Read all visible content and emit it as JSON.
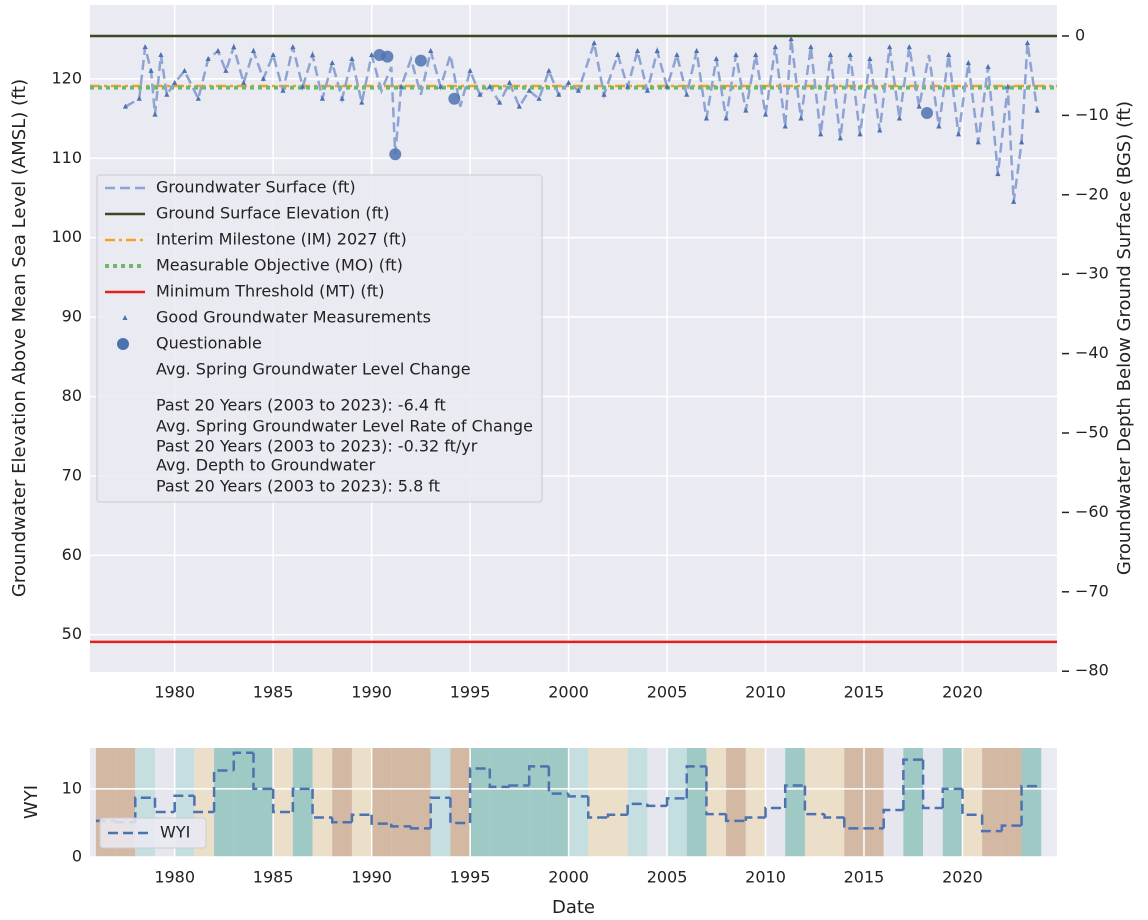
{
  "chart_data": [
    {
      "type": "line",
      "ylabel": "Groundwater Elevation Above Mean Sea Level (AMSL) (ft)",
      "y2label": "Groundwater Depth Below Ground Surface (BGS) (ft)",
      "xlim": [
        1975.7,
        2024.8
      ],
      "xticks": [
        1980,
        1985,
        1990,
        1995,
        2000,
        2005,
        2010,
        2015,
        2020
      ],
      "ylim": [
        45.3,
        129.3
      ],
      "yticks": [
        50,
        60,
        70,
        80,
        90,
        100,
        110,
        120
      ],
      "y2lim": [
        -80.1,
        3.9
      ],
      "y2ticks": [
        {
          "value": 0,
          "label": "0"
        },
        {
          "value": -10,
          "label": "−10"
        },
        {
          "value": -20,
          "label": "−20"
        },
        {
          "value": -30,
          "label": "−30"
        },
        {
          "value": -40,
          "label": "−40"
        },
        {
          "value": -50,
          "label": "−50"
        },
        {
          "value": -60,
          "label": "−60"
        },
        {
          "value": -70,
          "label": "−70"
        },
        {
          "value": -80,
          "label": "−80"
        }
      ],
      "grid": true,
      "series": [
        {
          "name": "Groundwater Surface (ft)",
          "color": "#8ea3d4",
          "style": "dashed",
          "x": [
            1977.5,
            1978.2,
            1978.5,
            1978.8,
            1979.0,
            1979.3,
            1979.6,
            1980.0,
            1980.5,
            1981.2,
            1981.7,
            1982.2,
            1982.6,
            1983.0,
            1983.5,
            1984.0,
            1984.5,
            1985.0,
            1985.5,
            1986.0,
            1986.5,
            1987.0,
            1987.5,
            1988.0,
            1988.5,
            1989.0,
            1989.5,
            1990.0,
            1990.5,
            1991.0,
            1991.2,
            1991.5,
            1992.0,
            1992.5,
            1993.0,
            1993.5,
            1994.0,
            1994.5,
            1995.0,
            1995.5,
            1996.0,
            1996.5,
            1997.0,
            1997.5,
            1998.0,
            1998.5,
            1999.0,
            1999.5,
            2000.0,
            2000.5,
            2001.3,
            2001.8,
            2002.5,
            2003.0,
            2003.5,
            2004.0,
            2004.5,
            2005.0,
            2005.5,
            2006.0,
            2006.5,
            2007.0,
            2007.5,
            2008.0,
            2008.5,
            2009.0,
            2009.5,
            2010.0,
            2010.5,
            2011.0,
            2011.3,
            2011.8,
            2012.3,
            2012.8,
            2013.3,
            2013.8,
            2014.3,
            2014.8,
            2015.3,
            2015.8,
            2016.3,
            2016.8,
            2017.3,
            2017.8,
            2018.3,
            2018.8,
            2019.3,
            2019.8,
            2020.3,
            2020.8,
            2021.3,
            2021.8,
            2022.3,
            2022.6,
            2023.0,
            2023.3,
            2023.8
          ],
          "values": [
            116.5,
            117.5,
            124,
            121,
            115.5,
            123,
            118,
            119.5,
            121,
            117.5,
            122.5,
            123.5,
            121,
            124,
            119.5,
            123.5,
            120,
            123,
            118.5,
            124,
            119,
            123,
            117.5,
            122,
            117.5,
            122.5,
            117,
            123,
            118.5,
            121.5,
            110.5,
            119,
            122.5,
            118,
            123.5,
            119,
            123,
            116.5,
            121,
            118,
            119,
            117,
            119.5,
            116.5,
            118.5,
            117.5,
            121,
            118,
            119.5,
            118.5,
            124.5,
            118,
            123,
            119,
            123.5,
            118.5,
            123.5,
            119,
            123,
            118,
            123.5,
            115,
            122.5,
            115,
            123,
            116,
            123,
            115.5,
            124,
            114,
            125,
            115,
            124,
            113,
            123,
            112.5,
            123,
            113,
            122.5,
            113.5,
            124,
            115,
            124,
            116.5,
            123,
            114,
            123,
            113,
            122,
            112,
            121.5,
            108,
            119,
            104.5,
            112,
            124.5,
            116
          ]
        },
        {
          "name": "Good Groundwater Measurements",
          "color": "#4c72b0",
          "marker": "triangle",
          "x": [
            1977.5,
            1978.2,
            1978.5,
            1978.8,
            1979.0,
            1979.3,
            1979.6,
            1980.0,
            1980.5,
            1981.2,
            1981.7,
            1982.2,
            1982.6,
            1983.0,
            1983.5,
            1984.0,
            1984.5,
            1985.0,
            1985.5,
            1986.0,
            1986.5,
            1987.0,
            1987.5,
            1988.0,
            1988.5,
            1989.0,
            1989.5,
            1990.0,
            1991.5,
            1993.0,
            1993.5,
            1995.0,
            1995.5,
            1996.0,
            1996.5,
            1997.0,
            1997.5,
            1998.0,
            1998.5,
            1999.0,
            1999.5,
            2000.0,
            2000.5,
            2001.3,
            2001.8,
            2002.5,
            2003.0,
            2003.5,
            2004.0,
            2004.5,
            2005.0,
            2005.5,
            2006.0,
            2006.5,
            2007.0,
            2007.5,
            2008.0,
            2008.5,
            2009.0,
            2009.5,
            2010.0,
            2010.5,
            2011.0,
            2011.3,
            2011.8,
            2012.3,
            2012.8,
            2013.3,
            2013.8,
            2014.3,
            2014.8,
            2015.3,
            2015.8,
            2016.3,
            2016.8,
            2017.3,
            2017.8,
            2018.8,
            2019.3,
            2019.8,
            2020.3,
            2020.8,
            2021.3,
            2021.8,
            2022.3,
            2022.6,
            2023.0,
            2023.3,
            2023.8
          ],
          "values": [
            116.5,
            117.5,
            124,
            121,
            115.5,
            123,
            118,
            119.5,
            121,
            117.5,
            122.5,
            123.5,
            121,
            124,
            119.5,
            123.5,
            120,
            123,
            118.5,
            124,
            119,
            123,
            117.5,
            122,
            117.5,
            122.5,
            117,
            123,
            119,
            123.5,
            119,
            121,
            118,
            119,
            117,
            119.5,
            116.5,
            118.5,
            117.5,
            121,
            118,
            119.5,
            118.5,
            124.5,
            118,
            123,
            119,
            123.5,
            118.5,
            123.5,
            119,
            123,
            118,
            123.5,
            115,
            122.5,
            115,
            123,
            116,
            123,
            115.5,
            124,
            114,
            125,
            115,
            124,
            113,
            123,
            112.5,
            123,
            113,
            122.5,
            113.5,
            124,
            115,
            124,
            116.5,
            114,
            123,
            113,
            122,
            112,
            121.5,
            108,
            119,
            104.5,
            112,
            124.5,
            116
          ]
        },
        {
          "name": "Questionable",
          "color": "#4c72b0",
          "marker": "circle",
          "x": [
            1990.4,
            1990.8,
            1991.2,
            1992.5,
            1994.2,
            2018.2
          ],
          "values": [
            123,
            122.8,
            110.5,
            122.3,
            117.5,
            115.7
          ]
        }
      ],
      "hlines": [
        {
          "name": "Ground Surface Elevation (ft)",
          "color": "#3b4a25",
          "style": "solid",
          "value": 125.4
        },
        {
          "name": "Interim Milestone (IM) 2027 (ft)",
          "color": "#f5a21b",
          "style": "dashdot",
          "value": 119.1
        },
        {
          "name": "Measurable Objective (MO) (ft)",
          "color": "#6fb96f",
          "style": "dotted",
          "value": 118.9
        },
        {
          "name": "Minimum Threshold (MT) (ft)",
          "color": "#e3201c",
          "style": "solid",
          "value": 49.1
        }
      ],
      "notes": [
        "Avg. Spring Groundwater Level Change",
        "Past 20 Years (2003 to 2023): -6.4 ft",
        "Avg. Spring Groundwater Level Rate of Change",
        "Past 20 Years (2003 to 2023): -0.32 ft/yr",
        "Avg. Depth to Groundwater",
        "Past 20 Years (2003 to 2023): 5.8 ft"
      ]
    },
    {
      "type": "step",
      "ylabel": "WYI",
      "xlabel": "Date",
      "xlim": [
        1975.7,
        2024.8
      ],
      "xticks": [
        1980,
        1985,
        1990,
        1995,
        2000,
        2005,
        2010,
        2015,
        2020
      ],
      "ylim": [
        0,
        16
      ],
      "yticks": [
        0,
        10
      ],
      "grid": true,
      "series": [
        {
          "name": "WYI",
          "color": "#4c72b0",
          "style": "dashed",
          "x": [
            1976,
            1977,
            1978,
            1979,
            1980,
            1981,
            1982,
            1983,
            1984,
            1985,
            1986,
            1987,
            1988,
            1989,
            1990,
            1991,
            1992,
            1993,
            1994,
            1995,
            1996,
            1997,
            1998,
            1999,
            2000,
            2001,
            2002,
            2003,
            2004,
            2005,
            2006,
            2007,
            2008,
            2009,
            2010,
            2011,
            2012,
            2013,
            2014,
            2015,
            2016,
            2017,
            2018,
            2019,
            2020,
            2021,
            2022,
            2023
          ],
          "values": [
            5.3,
            5.1,
            8.7,
            6.6,
            9.0,
            6.6,
            12.7,
            15.3,
            10.0,
            6.6,
            10.0,
            5.8,
            5.1,
            6.2,
            4.9,
            4.5,
            4.2,
            8.7,
            5.0,
            13.0,
            10.3,
            10.5,
            13.3,
            9.3,
            8.9,
            5.8,
            6.2,
            7.8,
            7.5,
            8.6,
            13.3,
            6.3,
            5.3,
            5.8,
            7.2,
            10.5,
            6.3,
            5.8,
            4.2,
            4.2,
            6.9,
            14.3,
            7.2,
            10.0,
            6.2,
            3.8,
            4.6,
            10.4
          ],
          "band_colors": [
            "#d3b8a3",
            "#d3b8a3",
            "#c5dfe0",
            "#e6e6ef",
            "#c5dfe0",
            "#ebdfca",
            "#9ec9c4",
            "#9ec9c4",
            "#9ec9c4",
            "#ebdfca",
            "#9ec9c4",
            "#ebdfca",
            "#d3b8a3",
            "#ebdfca",
            "#d3b8a3",
            "#d3b8a3",
            "#d3b8a3",
            "#c5dfe0",
            "#d3b8a3",
            "#9ec9c4",
            "#9ec9c4",
            "#9ec9c4",
            "#9ec9c4",
            "#9ec9c4",
            "#c5dfe0",
            "#ebdfca",
            "#ebdfca",
            "#c5dfe0",
            "#e6e6ef",
            "#c5dfe0",
            "#9ec9c4",
            "#ebdfca",
            "#d3b8a3",
            "#ebdfca",
            "#e6e6ef",
            "#9ec9c4",
            "#ebdfca",
            "#ebdfca",
            "#d3b8a3",
            "#d3b8a3",
            "#e6e6ef",
            "#9ec9c4",
            "#e6e6ef",
            "#9ec9c4",
            "#ebdfca",
            "#d3b8a3",
            "#d3b8a3",
            "#9ec9c4"
          ]
        }
      ]
    }
  ]
}
